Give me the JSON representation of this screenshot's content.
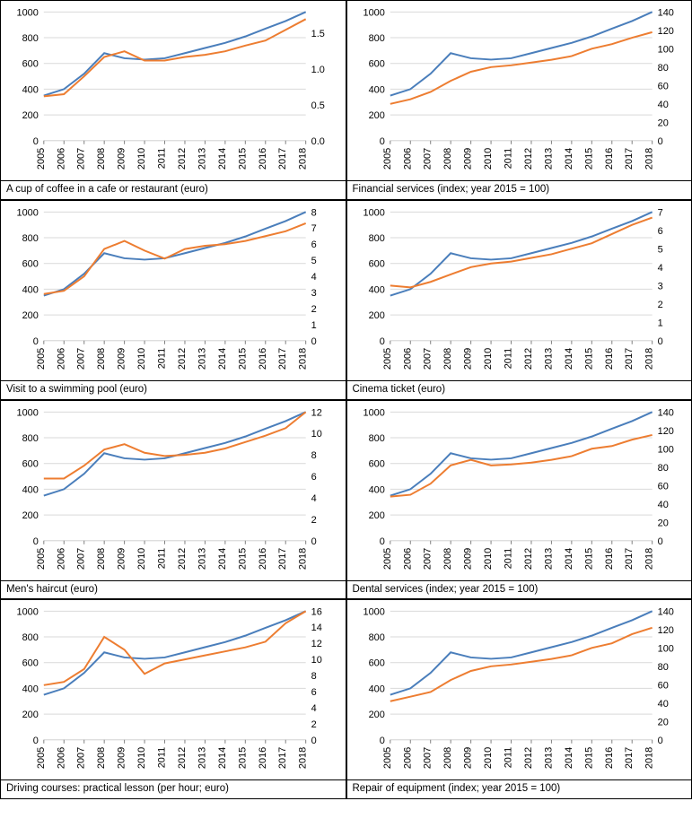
{
  "global": {
    "years": [
      2005,
      2006,
      2007,
      2008,
      2009,
      2010,
      2011,
      2012,
      2013,
      2014,
      2015,
      2016,
      2017,
      2018
    ],
    "left_ylim": [
      0,
      1000
    ],
    "left_ticks": [
      0,
      200,
      400,
      600,
      800,
      1000
    ],
    "colors": {
      "blue": "#4a7ebb",
      "orange": "#ed7d31",
      "grid": "#d9d9d9",
      "text": "#000000",
      "axis": "#808080"
    },
    "line_width": 2,
    "tick_fontsize": 11,
    "title_fontsize": 11.5,
    "blue_series": [
      350,
      400,
      520,
      680,
      640,
      630,
      640,
      680,
      720,
      760,
      810,
      870,
      930,
      1000
    ]
  },
  "charts": [
    {
      "title": "A cup of coffee in a cafe or restaurant (euro)",
      "right_ylim": [
        0.0,
        1.8
      ],
      "right_ticks": [
        0.0,
        0.5,
        1.0,
        1.5
      ],
      "right_tick_labels": [
        "0.0",
        "0.5",
        "1.0",
        "1.5"
      ],
      "orange_series": [
        0.62,
        0.65,
        0.9,
        1.17,
        1.25,
        1.12,
        1.12,
        1.17,
        1.2,
        1.25,
        1.33,
        1.4,
        1.55,
        1.7
      ]
    },
    {
      "title": "Financial services (index; year 2015 = 100)",
      "right_ylim": [
        0,
        140
      ],
      "right_ticks": [
        0,
        20,
        40,
        60,
        80,
        100,
        120,
        140
      ],
      "right_tick_labels": [
        "0",
        "20",
        "40",
        "60",
        "80",
        "100",
        "120",
        "140"
      ],
      "orange_series": [
        40,
        45,
        53,
        65,
        75,
        80,
        82,
        85,
        88,
        92,
        100,
        105,
        112,
        118
      ]
    },
    {
      "title": "Visit to a swimming pool (euro)",
      "right_ylim": [
        0,
        8
      ],
      "right_ticks": [
        0,
        1,
        2,
        3,
        4,
        5,
        6,
        7,
        8
      ],
      "right_tick_labels": [
        "0",
        "1",
        "2",
        "3",
        "4",
        "5",
        "6",
        "7",
        "8"
      ],
      "orange_series": [
        2.9,
        3.1,
        4.0,
        5.7,
        6.2,
        5.6,
        5.1,
        5.7,
        5.9,
        6.0,
        6.2,
        6.5,
        6.8,
        7.3
      ]
    },
    {
      "title": "Cinema ticket (euro)",
      "right_ylim": [
        0,
        7
      ],
      "right_ticks": [
        0,
        1,
        2,
        3,
        4,
        5,
        6,
        7
      ],
      "right_tick_labels": [
        "0",
        "1",
        "2",
        "3",
        "4",
        "5",
        "6",
        "7"
      ],
      "orange_series": [
        3.0,
        2.9,
        3.2,
        3.6,
        4.0,
        4.2,
        4.3,
        4.5,
        4.7,
        5.0,
        5.3,
        5.8,
        6.3,
        6.7
      ]
    },
    {
      "title": "Men's haircut (euro)",
      "right_ylim": [
        0,
        12
      ],
      "right_ticks": [
        0,
        2,
        4,
        6,
        8,
        10,
        12
      ],
      "right_tick_labels": [
        "0",
        "2",
        "4",
        "6",
        "8",
        "10",
        "12"
      ],
      "orange_series": [
        5.8,
        5.8,
        7.0,
        8.5,
        9.0,
        8.2,
        7.9,
        8.0,
        8.2,
        8.6,
        9.2,
        9.8,
        10.5,
        12.0
      ]
    },
    {
      "title": "Dental services (index; year 2015 = 100)",
      "right_ylim": [
        0,
        140
      ],
      "right_ticks": [
        0,
        20,
        40,
        60,
        80,
        100,
        120,
        140
      ],
      "right_tick_labels": [
        "0",
        "20",
        "40",
        "60",
        "80",
        "100",
        "120",
        "140"
      ],
      "orange_series": [
        48,
        50,
        62,
        82,
        88,
        82,
        83,
        85,
        88,
        92,
        100,
        103,
        110,
        115
      ]
    },
    {
      "title": "Driving courses: practical lesson (per hour; euro)",
      "right_ylim": [
        0,
        16
      ],
      "right_ticks": [
        0,
        2,
        4,
        6,
        8,
        10,
        12,
        14,
        16
      ],
      "right_tick_labels": [
        "0",
        "2",
        "4",
        "6",
        "8",
        "10",
        "12",
        "14",
        "16"
      ],
      "orange_series": [
        6.8,
        7.2,
        8.8,
        12.8,
        11.2,
        8.2,
        9.5,
        10.0,
        10.5,
        11.0,
        11.5,
        12.2,
        14.5,
        16.0
      ]
    },
    {
      "title": "Repair of equipment (index; year 2015 = 100)",
      "right_ylim": [
        0,
        140
      ],
      "right_ticks": [
        0,
        20,
        40,
        60,
        80,
        100,
        120,
        140
      ],
      "right_tick_labels": [
        "0",
        "20",
        "40",
        "60",
        "80",
        "100",
        "120",
        "140"
      ],
      "orange_series": [
        42,
        47,
        52,
        65,
        75,
        80,
        82,
        85,
        88,
        92,
        100,
        105,
        115,
        122
      ]
    }
  ]
}
